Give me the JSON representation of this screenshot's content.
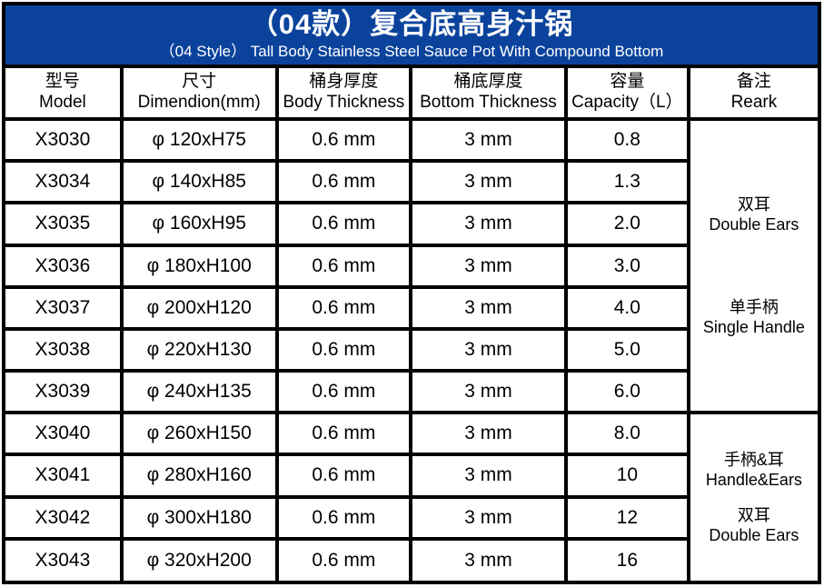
{
  "header": {
    "title_zh": "（04款）复合底高身汁锅",
    "title_en": "（04 Style） Tall Body Stainless Steel Sauce Pot With Compound Bottom"
  },
  "columns": {
    "model": {
      "zh": "型号",
      "en": "Model"
    },
    "dim": {
      "zh": "尺寸",
      "en": "Dimendion(mm)"
    },
    "body": {
      "zh": "桶身厚度",
      "en": "Body Thickness"
    },
    "bottom": {
      "zh": "桶底厚度",
      "en": "Bottom Thickness"
    },
    "cap": {
      "zh": "容量",
      "en": "Capacity（L）"
    },
    "remark": {
      "zh": "备注",
      "en": "Reark"
    }
  },
  "rows": [
    {
      "model": "X3030",
      "dim": "φ 120xH75",
      "body": "0.6 mm",
      "bottom": "3 mm",
      "cap": "0.8"
    },
    {
      "model": "X3034",
      "dim": "φ 140xH85",
      "body": "0.6 mm",
      "bottom": "3 mm",
      "cap": "1.3"
    },
    {
      "model": "X3035",
      "dim": "φ 160xH95",
      "body": "0.6 mm",
      "bottom": "3 mm",
      "cap": "2.0"
    },
    {
      "model": "X3036",
      "dim": "φ 180xH100",
      "body": "0.6 mm",
      "bottom": "3 mm",
      "cap": "3.0"
    },
    {
      "model": "X3037",
      "dim": "φ 200xH120",
      "body": "0.6 mm",
      "bottom": "3 mm",
      "cap": "4.0"
    },
    {
      "model": "X3038",
      "dim": "φ 220xH130",
      "body": "0.6 mm",
      "bottom": "3 mm",
      "cap": "5.0"
    },
    {
      "model": "X3039",
      "dim": "φ 240xH135",
      "body": "0.6 mm",
      "bottom": "3 mm",
      "cap": "6.0"
    },
    {
      "model": "X3040",
      "dim": "φ 260xH150",
      "body": "0.6 mm",
      "bottom": "3 mm",
      "cap": "8.0"
    },
    {
      "model": "X3041",
      "dim": "φ 280xH160",
      "body": "0.6 mm",
      "bottom": "3 mm",
      "cap": "10"
    },
    {
      "model": "X3042",
      "dim": "φ 300xH180",
      "body": "0.6 mm",
      "bottom": "3 mm",
      "cap": "12"
    },
    {
      "model": "X3043",
      "dim": "φ 320xH200",
      "body": "0.6 mm",
      "bottom": "3 mm",
      "cap": "16"
    }
  ],
  "remark_groups": [
    {
      "row_span": 7,
      "notes": [
        {
          "zh": "双耳",
          "en": "Double Ears"
        },
        {
          "zh": "单手柄",
          "en": "Single Handle"
        }
      ]
    },
    {
      "row_span": 4,
      "notes": [
        {
          "zh": "手柄&耳",
          "en": "Handle&Ears"
        },
        {
          "zh": "双耳",
          "en": "Double Ears"
        }
      ]
    }
  ],
  "colors": {
    "header_bg": "#0b439c",
    "border": "#000000",
    "header_text": "#ffffff",
    "cell_text": "#000000"
  }
}
